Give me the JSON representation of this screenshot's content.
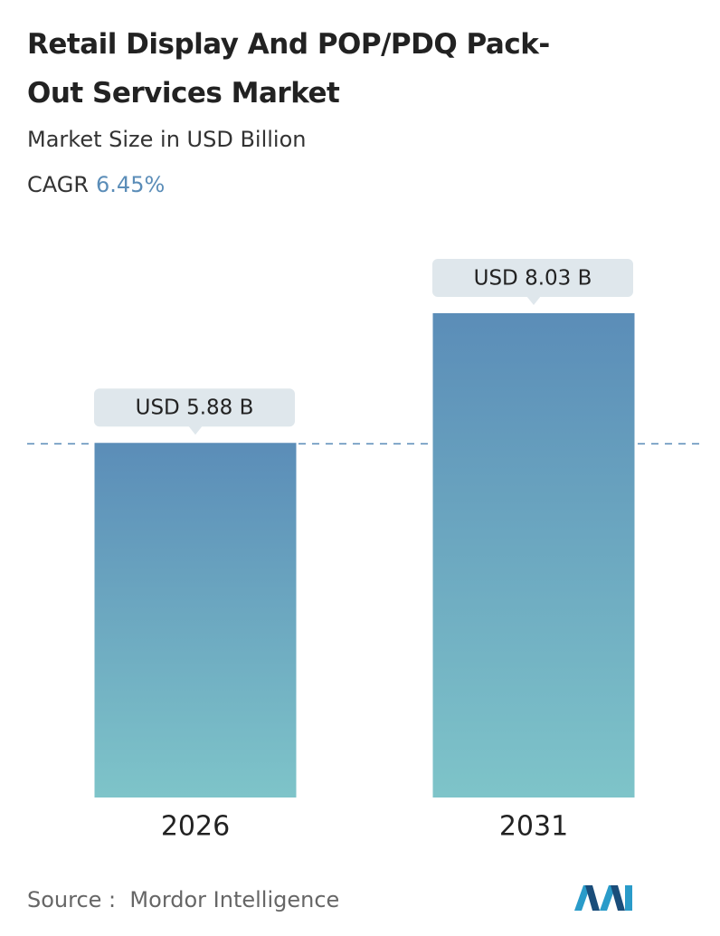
{
  "chart_data": {
    "type": "bar",
    "title": "Retail Display And POP/PDQ Pack-Out Services Market",
    "subtitle": "Market Size in USD Billion",
    "cagr_label": "CAGR",
    "cagr": "6.45%",
    "categories": [
      "2026",
      "2031"
    ],
    "values": [
      5.88,
      8.03
    ],
    "value_labels": [
      "USD 5.88 B",
      "USD 8.03 B"
    ],
    "color": [
      "#5b8db8",
      "#7ec4c9"
    ],
    "source_label": "Source :",
    "source": "Mordor Intelligence"
  }
}
